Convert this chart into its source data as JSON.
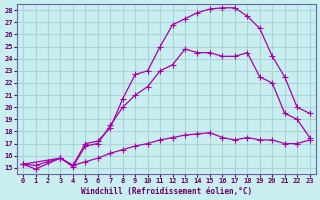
{
  "xlabel": "Windchill (Refroidissement éolien,°C)",
  "ylabel": "",
  "bg_color": "#c8eef0",
  "grid_color": "#aad4d8",
  "line_color": "#aa00aa",
  "xlim": [
    -0.5,
    23.5
  ],
  "ylim": [
    14.5,
    28.5
  ],
  "xticks": [
    0,
    1,
    2,
    3,
    4,
    5,
    6,
    7,
    8,
    9,
    10,
    11,
    12,
    13,
    14,
    15,
    16,
    17,
    18,
    19,
    20,
    21,
    22,
    23
  ],
  "yticks": [
    15,
    16,
    17,
    18,
    19,
    20,
    21,
    22,
    23,
    24,
    25,
    26,
    27,
    28
  ],
  "curve1_x": [
    0,
    1,
    3,
    4,
    5,
    6,
    7,
    8,
    9,
    10,
    11,
    12,
    13,
    14,
    15,
    16,
    17,
    18,
    19,
    20,
    21,
    22,
    23
  ],
  "curve1_y": [
    15.3,
    14.9,
    15.8,
    15.1,
    16.8,
    17.0,
    18.5,
    20.0,
    21.0,
    21.7,
    23.0,
    23.5,
    24.8,
    24.5,
    24.5,
    24.2,
    24.2,
    24.5,
    22.5,
    22.0,
    19.5,
    19.0,
    17.5
  ],
  "curve2_x": [
    0,
    3,
    4,
    5,
    6,
    7,
    8,
    9,
    10,
    11,
    12,
    13,
    14,
    15,
    16,
    17,
    18,
    19,
    20,
    21,
    22,
    23
  ],
  "curve2_y": [
    15.3,
    15.8,
    15.2,
    17.0,
    17.2,
    18.3,
    20.7,
    22.7,
    23.0,
    25.0,
    26.8,
    27.3,
    27.8,
    28.1,
    28.2,
    28.2,
    27.5,
    26.5,
    24.2,
    22.5,
    20.0,
    19.5
  ],
  "curve3_x": [
    0,
    1,
    2,
    3,
    4,
    5,
    6,
    7,
    8,
    9,
    10,
    11,
    12,
    13,
    14,
    15,
    16,
    17,
    18,
    19,
    20,
    21,
    22,
    23
  ],
  "curve3_y": [
    15.3,
    15.2,
    15.5,
    15.8,
    15.2,
    15.5,
    15.8,
    16.2,
    16.5,
    16.8,
    17.0,
    17.3,
    17.5,
    17.7,
    17.8,
    17.9,
    17.5,
    17.3,
    17.5,
    17.3,
    17.3,
    17.0,
    17.0,
    17.3
  ]
}
